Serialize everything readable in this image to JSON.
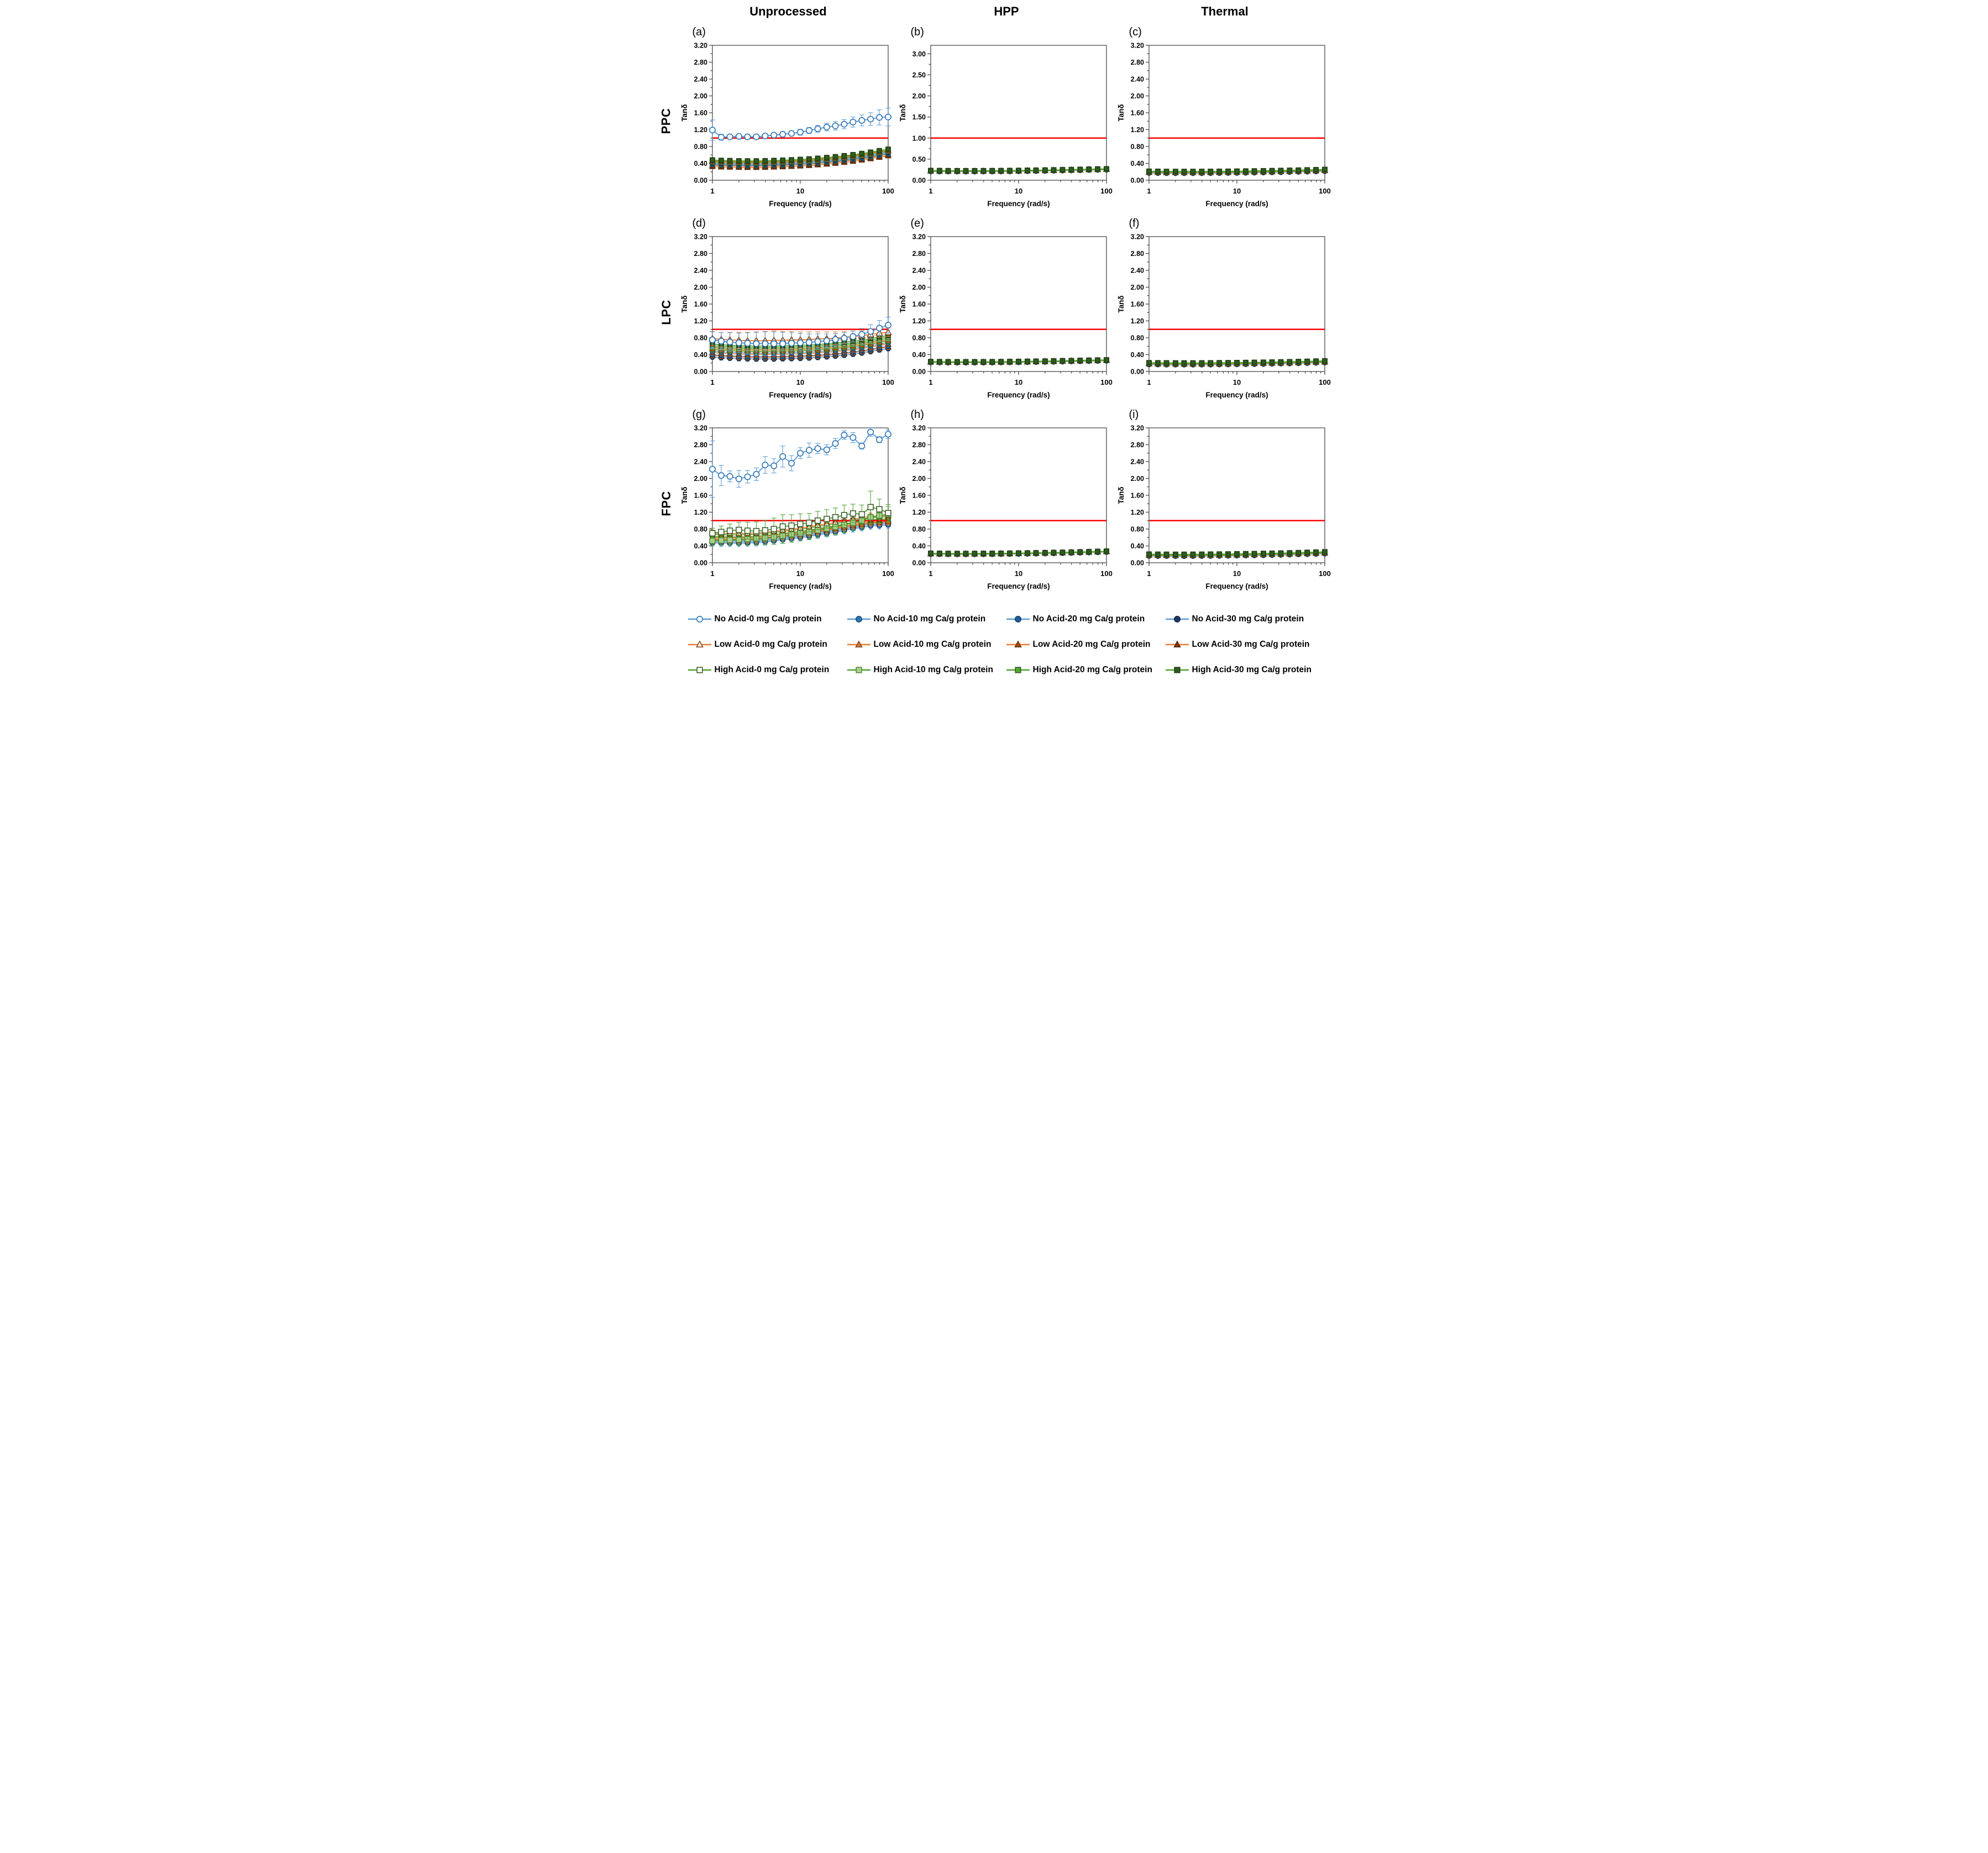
{
  "figure": {
    "col_headers": [
      "Unprocessed",
      "HPP",
      "Thermal"
    ],
    "row_headers": [
      "PPC",
      "LPC",
      "FPC"
    ],
    "x_axis": {
      "label": "Frequency (rad/s)",
      "ticks": [
        1,
        10,
        100
      ],
      "range": [
        1,
        100
      ],
      "scale": "log"
    },
    "y_axis_label": "Tanδ",
    "red_line_y": 1.0,
    "red_line_color": "#FF0000",
    "frame_color": "#595959",
    "freq": [
      1,
      1.26,
      1.58,
      2,
      2.51,
      3.16,
      3.98,
      5.01,
      6.31,
      7.94,
      10,
      12.6,
      15.8,
      20,
      25.1,
      31.6,
      39.8,
      50.1,
      63.1,
      79.4,
      100
    ],
    "series_styles": {
      "no0": {
        "label": "No Acid-0 mg Ca/g protein",
        "marker": "circle",
        "line": "#5B9BD5",
        "fill": "#FFFFFF",
        "stroke": "#2E75B6"
      },
      "no10": {
        "label": "No Acid-10 mg Ca/g protein",
        "marker": "circle",
        "line": "#5B9BD5",
        "fill": "#2E75B6",
        "stroke": "#1F4E79"
      },
      "no20": {
        "label": "No Acid-20 mg Ca/g protein",
        "marker": "circle",
        "line": "#5B9BD5",
        "fill": "#1F5C99",
        "stroke": "#17406B"
      },
      "no30": {
        "label": "No Acid-30 mg Ca/g protein",
        "marker": "circle",
        "line": "#5B9BD5",
        "fill": "#1F3864",
        "stroke": "#152744"
      },
      "low0": {
        "label": "Low Acid-0 mg Ca/g protein",
        "marker": "triangle",
        "line": "#ED7D31",
        "fill": "#FFFFFF",
        "stroke": "#843C0C"
      },
      "low10": {
        "label": "Low Acid-10 mg Ca/g protein",
        "marker": "triangle",
        "line": "#ED7D31",
        "fill": "#C97F52",
        "stroke": "#843C0C"
      },
      "low20": {
        "label": "Low Acid-20 mg Ca/g protein",
        "marker": "triangle",
        "line": "#ED7D31",
        "fill": "#9C4A10",
        "stroke": "#6B3208"
      },
      "low30": {
        "label": "Low Acid-30 mg Ca/g protein",
        "marker": "triangle",
        "line": "#ED7D31",
        "fill": "#7F3808",
        "stroke": "#572604"
      },
      "high0": {
        "label": "High Acid-0 mg Ca/g protein",
        "marker": "square",
        "line": "#4CA32E",
        "fill": "#FFFFFF",
        "stroke": "#375623"
      },
      "high10": {
        "label": "High Acid-10 mg Ca/g protein",
        "marker": "square",
        "line": "#4CA32E",
        "fill": "#A9D18E",
        "stroke": "#538135"
      },
      "high20": {
        "label": "High Acid-20 mg Ca/g protein",
        "marker": "square",
        "line": "#4CA32E",
        "fill": "#4EA72E",
        "stroke": "#375623"
      },
      "high30": {
        "label": "High Acid-30 mg Ca/g protein",
        "marker": "square",
        "line": "#4CA32E",
        "fill": "#2E5B1E",
        "stroke": "#1E3C12"
      }
    },
    "legend_order": [
      "no0",
      "no10",
      "no20",
      "no30",
      "low0",
      "low10",
      "low20",
      "low30",
      "high0",
      "high10",
      "high20",
      "high30"
    ],
    "chart_data": [
      {
        "id": "a",
        "type": "line",
        "row": "PPC",
        "col": "Unprocessed",
        "y_axis": {
          "max": 3.2,
          "major": 0.4,
          "minor": 0.2,
          "decimals": 2
        },
        "cluster": {
          "err": 0.045,
          "base": [
            0.4,
            0.39,
            0.385,
            0.38,
            0.378,
            0.378,
            0.382,
            0.388,
            0.395,
            0.403,
            0.413,
            0.425,
            0.44,
            0.457,
            0.477,
            0.5,
            0.525,
            0.553,
            0.585,
            0.62,
            0.655
          ],
          "offsets": {
            "no10": -0.015,
            "no20": -0.03,
            "no30": 0.01,
            "low0": 0.065,
            "low10": 0.045,
            "low20": -0.045,
            "low30": -0.075,
            "high0": -0.02,
            "high10": 0.035,
            "high20": 0.055,
            "high30": 0.08
          }
        },
        "standouts": [
          {
            "series": "no0",
            "y": [
              1.19,
              1.02,
              1.03,
              1.04,
              1.03,
              1.03,
              1.05,
              1.07,
              1.09,
              1.11,
              1.14,
              1.18,
              1.22,
              1.26,
              1.29,
              1.33,
              1.38,
              1.42,
              1.45,
              1.49,
              1.5
            ],
            "err": [
              0.24,
              0.07,
              0.05,
              0.05,
              0.05,
              0.05,
              0.05,
              0.05,
              0.06,
              0.06,
              0.07,
              0.07,
              0.08,
              0.09,
              0.1,
              0.11,
              0.12,
              0.13,
              0.15,
              0.18,
              0.21
            ]
          }
        ]
      },
      {
        "id": "b",
        "type": "line",
        "row": "PPC",
        "col": "HPP",
        "y_axis": {
          "max": 3.2,
          "major": 0.5,
          "minor": 0.25,
          "decimals": 2
        },
        "cluster": {
          "err": 0,
          "base": [
            0.22,
            0.218,
            0.216,
            0.215,
            0.215,
            0.215,
            0.216,
            0.217,
            0.218,
            0.22,
            0.222,
            0.225,
            0.228,
            0.231,
            0.235,
            0.239,
            0.243,
            0.247,
            0.252,
            0.256,
            0.26
          ],
          "offsets": {
            "no0": -0.012,
            "no10": -0.008,
            "no20": -0.01,
            "no30": -0.006,
            "low0": -0.004,
            "low10": -0.002,
            "low20": 0.0,
            "low30": 0.002,
            "high0": 0.002,
            "high10": 0.005,
            "high20": 0.008,
            "high30": 0.01
          }
        },
        "standouts": []
      },
      {
        "id": "c",
        "type": "line",
        "row": "PPC",
        "col": "Thermal",
        "y_axis": {
          "max": 3.2,
          "major": 0.4,
          "minor": 0.2,
          "decimals": 2
        },
        "cluster": {
          "err": 0,
          "base": [
            0.195,
            0.193,
            0.191,
            0.19,
            0.19,
            0.19,
            0.191,
            0.192,
            0.193,
            0.195,
            0.197,
            0.2,
            0.203,
            0.206,
            0.21,
            0.214,
            0.218,
            0.222,
            0.227,
            0.232,
            0.238
          ],
          "offsets": {
            "no0": -0.025,
            "no10": -0.02,
            "no20": -0.022,
            "no30": -0.018,
            "low0": -0.01,
            "low10": -0.006,
            "low20": -0.003,
            "low30": 0.0,
            "high0": 0.004,
            "high10": 0.01,
            "high20": 0.014,
            "high30": 0.018
          }
        },
        "standouts": []
      },
      {
        "id": "d",
        "type": "line",
        "row": "LPC",
        "col": "Unprocessed",
        "y_axis": {
          "max": 3.2,
          "major": 0.4,
          "minor": 0.2,
          "decimals": 2
        },
        "cluster": {
          "err": 0.06,
          "base": [
            0.5,
            0.483,
            0.472,
            0.463,
            0.457,
            0.453,
            0.452,
            0.455,
            0.459,
            0.464,
            0.47,
            0.478,
            0.49,
            0.505,
            0.522,
            0.542,
            0.567,
            0.595,
            0.63,
            0.668,
            0.7
          ],
          "offsets": {
            "no10": -0.02,
            "no20": -0.1,
            "no30": -0.155,
            "low10": 0.05,
            "low20": -0.05,
            "low30": -0.12,
            "high0": 0.115,
            "high10": 0.08,
            "high20": 0.02,
            "high30": 0.15
          }
        },
        "standouts": [
          {
            "series": "low0",
            "y": [
              0.78,
              0.76,
              0.75,
              0.74,
              0.73,
              0.73,
              0.73,
              0.74,
              0.74,
              0.75,
              0.75,
              0.76,
              0.77,
              0.78,
              0.79,
              0.81,
              0.83,
              0.85,
              0.88,
              0.91,
              0.93
            ],
            "err": [
              0.16,
              0.17,
              0.18,
              0.19,
              0.2,
              0.21,
              0.22,
              0.22,
              0.21,
              0.2,
              0.19,
              0.18,
              0.17,
              0.16,
              0.15,
              0.14,
              0.13,
              0.12,
              0.11,
              0.1,
              0.1
            ]
          },
          {
            "series": "no0",
            "y": [
              0.75,
              0.72,
              0.7,
              0.68,
              0.67,
              0.66,
              0.66,
              0.66,
              0.66,
              0.67,
              0.68,
              0.69,
              0.71,
              0.73,
              0.76,
              0.79,
              0.83,
              0.88,
              0.95,
              1.03,
              1.1
            ],
            "err": [
              0.2,
              0.21,
              0.22,
              0.23,
              0.25,
              0.27,
              0.28,
              0.28,
              0.27,
              0.25,
              0.22,
              0.2,
              0.18,
              0.16,
              0.14,
              0.13,
              0.13,
              0.14,
              0.16,
              0.18,
              0.19
            ]
          }
        ]
      },
      {
        "id": "e",
        "type": "line",
        "row": "LPC",
        "col": "HPP",
        "y_axis": {
          "max": 3.2,
          "major": 0.4,
          "minor": 0.2,
          "decimals": 2
        },
        "cluster": {
          "err": 0,
          "base": [
            0.225,
            0.223,
            0.221,
            0.22,
            0.22,
            0.22,
            0.221,
            0.222,
            0.224,
            0.226,
            0.228,
            0.231,
            0.234,
            0.237,
            0.241,
            0.245,
            0.249,
            0.253,
            0.257,
            0.261,
            0.265
          ],
          "offsets": {
            "no0": -0.012,
            "no10": -0.008,
            "no20": -0.01,
            "no30": -0.006,
            "low0": -0.004,
            "low10": -0.002,
            "low20": 0.0,
            "low30": 0.002,
            "high0": 0.002,
            "high10": 0.005,
            "high20": 0.008,
            "high30": 0.01
          }
        },
        "standouts": []
      },
      {
        "id": "f",
        "type": "line",
        "row": "LPC",
        "col": "Thermal",
        "y_axis": {
          "max": 3.2,
          "major": 0.4,
          "minor": 0.2,
          "decimals": 2
        },
        "cluster": {
          "err": 0,
          "base": [
            0.19,
            0.188,
            0.186,
            0.185,
            0.185,
            0.185,
            0.186,
            0.187,
            0.189,
            0.191,
            0.193,
            0.196,
            0.199,
            0.202,
            0.206,
            0.21,
            0.214,
            0.219,
            0.224,
            0.229,
            0.235
          ],
          "offsets": {
            "no0": -0.025,
            "no10": -0.02,
            "no20": -0.022,
            "no30": -0.018,
            "low0": -0.01,
            "low10": -0.006,
            "low20": -0.003,
            "low30": 0.0,
            "high0": 0.004,
            "high10": 0.01,
            "high20": 0.014,
            "high30": 0.018
          }
        },
        "standouts": []
      },
      {
        "id": "g",
        "type": "line",
        "row": "FPC",
        "col": "Unprocessed",
        "y_axis": {
          "max": 3.2,
          "major": 0.4,
          "minor": 0.2,
          "decimals": 2
        },
        "cluster": {
          "err": 0.08,
          "base": [
            0.55,
            0.545,
            0.543,
            0.543,
            0.548,
            0.556,
            0.578,
            0.598,
            0.625,
            0.648,
            0.675,
            0.705,
            0.74,
            0.772,
            0.808,
            0.846,
            0.886,
            0.915,
            0.955,
            0.96,
            0.975
          ],
          "offsets": {
            "no10": -0.02,
            "no20": -0.05,
            "no30": -0.08,
            "low0": 0.15,
            "low10": 0.02,
            "low20": 0.05,
            "low30": 0.0,
            "high20": 0.07,
            "high30": 0.12
          }
        },
        "standouts": [
          {
            "series": "high10",
            "y": [
              0.52,
              0.53,
              0.54,
              0.55,
              0.56,
              0.57,
              0.59,
              0.61,
              0.64,
              0.67,
              0.7,
              0.73,
              0.77,
              0.81,
              0.85,
              0.9,
              0.95,
              1.0,
              1.08,
              1.12,
              1.15
            ],
            "err": [
              0.1,
              0.11,
              0.12,
              0.13,
              0.14,
              0.15,
              0.16,
              0.17,
              0.18,
              0.18,
              0.18,
              0.18,
              0.18,
              0.18,
              0.18,
              0.18,
              0.18,
              0.18,
              0.18,
              0.18,
              0.18
            ]
          },
          {
            "series": "high0",
            "y": [
              0.7,
              0.73,
              0.76,
              0.78,
              0.76,
              0.75,
              0.77,
              0.8,
              0.86,
              0.88,
              0.92,
              0.95,
              1.0,
              1.04,
              1.08,
              1.13,
              1.17,
              1.15,
              1.32,
              1.27,
              1.18
            ],
            "err": [
              0.12,
              0.14,
              0.16,
              0.18,
              0.2,
              0.22,
              0.24,
              0.26,
              0.28,
              0.26,
              0.24,
              0.22,
              0.22,
              0.22,
              0.22,
              0.24,
              0.22,
              0.22,
              0.38,
              0.24,
              0.2
            ]
          },
          {
            "series": "no0",
            "y": [
              2.22,
              2.07,
              2.05,
              1.99,
              2.04,
              2.1,
              2.32,
              2.3,
              2.52,
              2.36,
              2.6,
              2.67,
              2.71,
              2.68,
              2.83,
              3.03,
              2.97,
              2.77,
              3.1,
              2.92,
              3.05
            ],
            "err": [
              0.67,
              0.24,
              0.13,
              0.2,
              0.15,
              0.15,
              0.2,
              0.17,
              0.25,
              0.18,
              0.13,
              0.17,
              0.12,
              0.12,
              0.12,
              0.1,
              0.12,
              0.07,
              0.1,
              0.07,
              0.1
            ]
          }
        ]
      },
      {
        "id": "h",
        "type": "line",
        "row": "FPC",
        "col": "HPP",
        "y_axis": {
          "max": 3.2,
          "major": 0.4,
          "minor": 0.2,
          "decimals": 2
        },
        "cluster": {
          "err": 0,
          "base": [
            0.215,
            0.213,
            0.211,
            0.21,
            0.21,
            0.211,
            0.212,
            0.213,
            0.215,
            0.217,
            0.22,
            0.223,
            0.226,
            0.23,
            0.234,
            0.238,
            0.243,
            0.248,
            0.253,
            0.259,
            0.265
          ],
          "offsets": {
            "no0": -0.012,
            "no10": -0.008,
            "no20": -0.01,
            "no30": -0.006,
            "low0": -0.004,
            "low10": -0.002,
            "low20": 0.0,
            "low30": 0.002,
            "high0": 0.002,
            "high10": 0.005,
            "high20": 0.008,
            "high30": 0.01
          }
        },
        "standouts": []
      },
      {
        "id": "i",
        "type": "line",
        "row": "FPC",
        "col": "Thermal",
        "y_axis": {
          "max": 3.2,
          "major": 0.4,
          "minor": 0.2,
          "decimals": 2
        },
        "cluster": {
          "err": 0,
          "base": [
            0.185,
            0.183,
            0.182,
            0.181,
            0.181,
            0.182,
            0.183,
            0.185,
            0.187,
            0.189,
            0.192,
            0.195,
            0.198,
            0.202,
            0.206,
            0.211,
            0.216,
            0.221,
            0.227,
            0.233,
            0.24
          ],
          "offsets": {
            "no0": -0.025,
            "no10": -0.02,
            "no20": -0.022,
            "no30": -0.018,
            "low0": -0.01,
            "low10": -0.006,
            "low20": -0.003,
            "low30": 0.0,
            "high0": 0.004,
            "high10": 0.01,
            "high20": 0.014,
            "high30": 0.02
          }
        },
        "standouts": []
      }
    ]
  }
}
